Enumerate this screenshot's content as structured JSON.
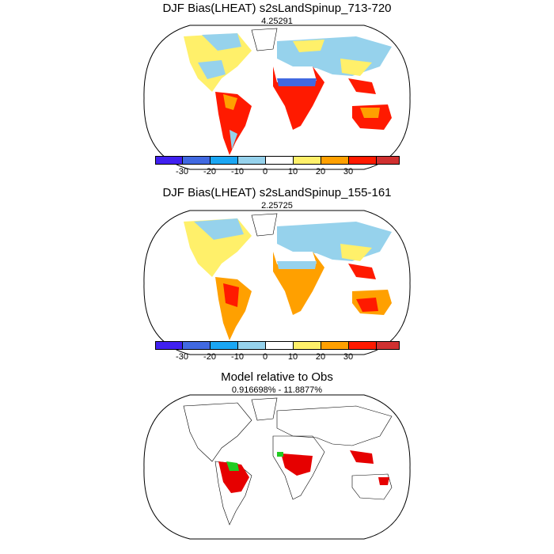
{
  "panels": [
    {
      "title": "DJF Bias(LHEAT) s2sLandSpinup_713-720",
      "subtitle": "4.25291"
    },
    {
      "title": "DJF Bias(LHEAT) s2sLandSpinup_155-161",
      "subtitle": "2.25725"
    },
    {
      "title": "Model relative to Obs",
      "subtitle": "0.916698% - 11.8877%"
    }
  ],
  "colorbar": {
    "colors": [
      "#4020f0",
      "#4169e1",
      "#1aa6f4",
      "#96d2ec",
      "#ffffff",
      "#fff06a",
      "#ffa000",
      "#ff1a00",
      "#d03030"
    ],
    "labels": [
      "-30",
      "-20",
      "-10",
      "0",
      "10",
      "20",
      "30"
    ]
  },
  "colors": {
    "green": "#22cc22",
    "red": "#e60000"
  }
}
